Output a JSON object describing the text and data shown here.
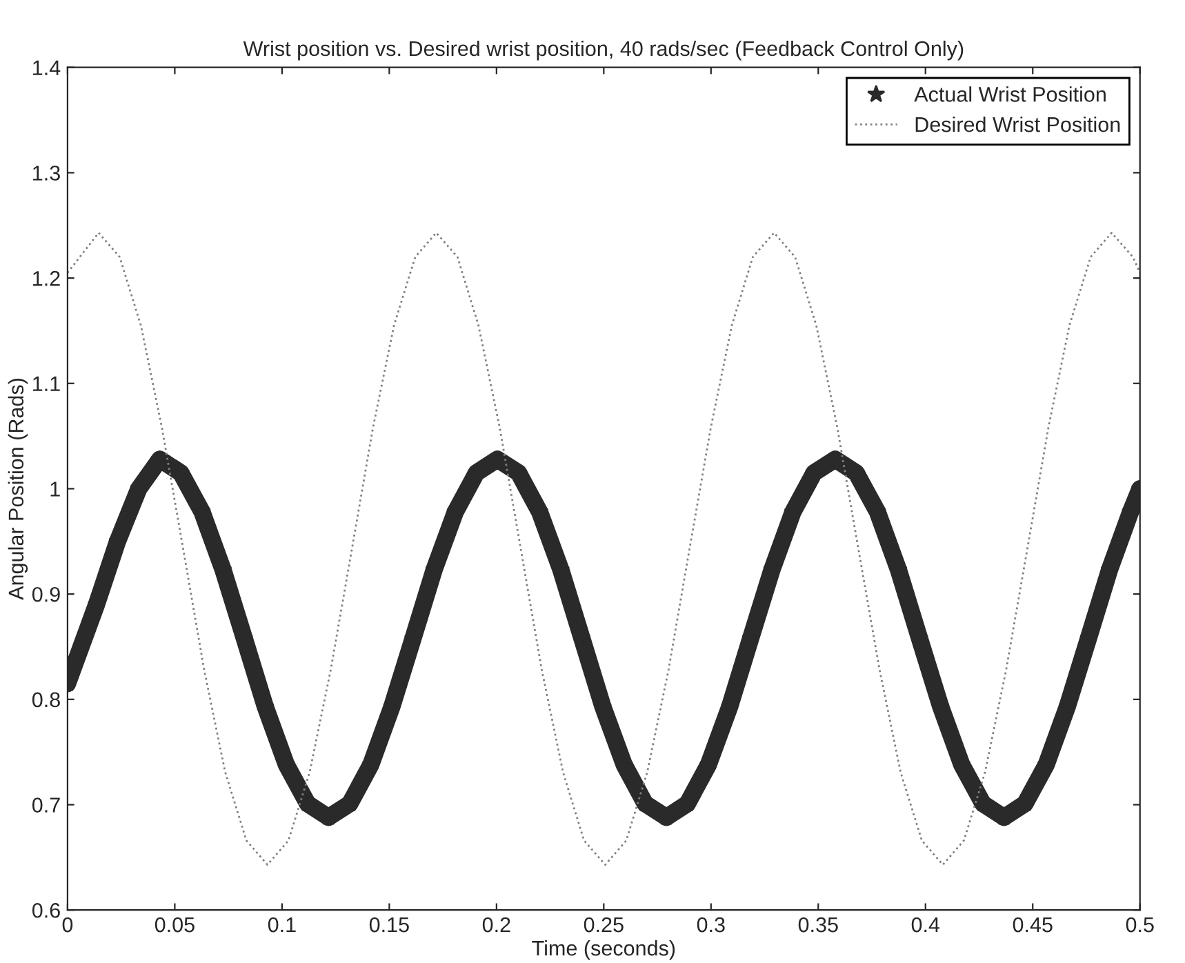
{
  "chart_data": {
    "type": "line",
    "title": "Wrist position vs. Desired wrist position, 40 rads/sec (Feedback Control Only)",
    "xlabel": "Time (seconds)",
    "ylabel": "Angular Position (Rads)",
    "xlim": [
      0,
      0.5
    ],
    "xticks": [
      0,
      0.05,
      0.1,
      0.15,
      0.2,
      0.25,
      0.3,
      0.35,
      0.4,
      0.45,
      0.5
    ],
    "ylim": [
      0.6,
      1.4
    ],
    "yticks": [
      0.6,
      0.7,
      0.8,
      0.9,
      1,
      1.1,
      1.2,
      1.3,
      1.4
    ],
    "grid": false,
    "legend": "top right",
    "series": [
      {
        "name": "Actual Wrist Position",
        "color": "#2a2a2a",
        "marker": "star",
        "line_style": "solid",
        "x": [
          0,
          0.0135,
          0.0233,
          0.0332,
          0.043,
          0.0528,
          0.0627,
          0.0725,
          0.0824,
          0.0922,
          0.102,
          0.1119,
          0.1217,
          0.1316,
          0.1414,
          0.1512,
          0.1611,
          0.1709,
          0.1808,
          0.1906,
          0.2004,
          0.2103,
          0.2201,
          0.23,
          0.2398,
          0.2496,
          0.2595,
          0.2693,
          0.2792,
          0.289,
          0.2988,
          0.3087,
          0.3185,
          0.3284,
          0.3382,
          0.348,
          0.3579,
          0.3677,
          0.3776,
          0.3874,
          0.3972,
          0.4071,
          0.4169,
          0.4268,
          0.4366,
          0.4464,
          0.4563,
          0.4661,
          0.476,
          0.4858,
          0.4956,
          0.5
        ],
        "values": [
          0.815,
          0.89,
          0.95,
          1.0,
          1.028,
          1.015,
          0.978,
          0.923,
          0.858,
          0.793,
          0.738,
          0.701,
          0.688,
          0.701,
          0.738,
          0.793,
          0.858,
          0.923,
          0.978,
          1.015,
          1.028,
          1.015,
          0.978,
          0.923,
          0.858,
          0.793,
          0.738,
          0.701,
          0.688,
          0.701,
          0.738,
          0.793,
          0.858,
          0.923,
          0.978,
          1.015,
          1.028,
          1.015,
          0.978,
          0.923,
          0.858,
          0.793,
          0.738,
          0.701,
          0.688,
          0.701,
          0.738,
          0.793,
          0.858,
          0.923,
          0.978,
          1.0
        ]
      },
      {
        "name": "Desired Wrist Position",
        "color": "#808080",
        "marker": "none",
        "line_style": "dotted",
        "x": [
          0,
          0.0145,
          0.0243,
          0.0342,
          0.044,
          0.0539,
          0.0637,
          0.0735,
          0.0834,
          0.0932,
          0.103,
          0.1129,
          0.1227,
          0.1326,
          0.1424,
          0.1522,
          0.1621,
          0.1719,
          0.1818,
          0.1916,
          0.2015,
          0.2113,
          0.2211,
          0.231,
          0.2408,
          0.2507,
          0.2605,
          0.2703,
          0.2802,
          0.29,
          0.2999,
          0.3097,
          0.3195,
          0.3294,
          0.3392,
          0.3491,
          0.3589,
          0.3687,
          0.3786,
          0.3884,
          0.3983,
          0.4081,
          0.4179,
          0.4278,
          0.4376,
          0.4475,
          0.4573,
          0.4671,
          0.477,
          0.4868,
          0.4967,
          0.5
        ],
        "values": [
          1.205,
          1.243,
          1.22,
          1.155,
          1.058,
          0.943,
          0.828,
          0.731,
          0.666,
          0.643,
          0.666,
          0.731,
          0.828,
          0.943,
          1.058,
          1.155,
          1.22,
          1.243,
          1.22,
          1.155,
          1.058,
          0.943,
          0.828,
          0.731,
          0.666,
          0.643,
          0.666,
          0.731,
          0.828,
          0.943,
          1.058,
          1.155,
          1.22,
          1.243,
          1.22,
          1.155,
          1.058,
          0.943,
          0.828,
          0.731,
          0.666,
          0.643,
          0.666,
          0.731,
          0.828,
          0.943,
          1.058,
          1.155,
          1.22,
          1.243,
          1.22,
          1.205
        ]
      }
    ]
  }
}
